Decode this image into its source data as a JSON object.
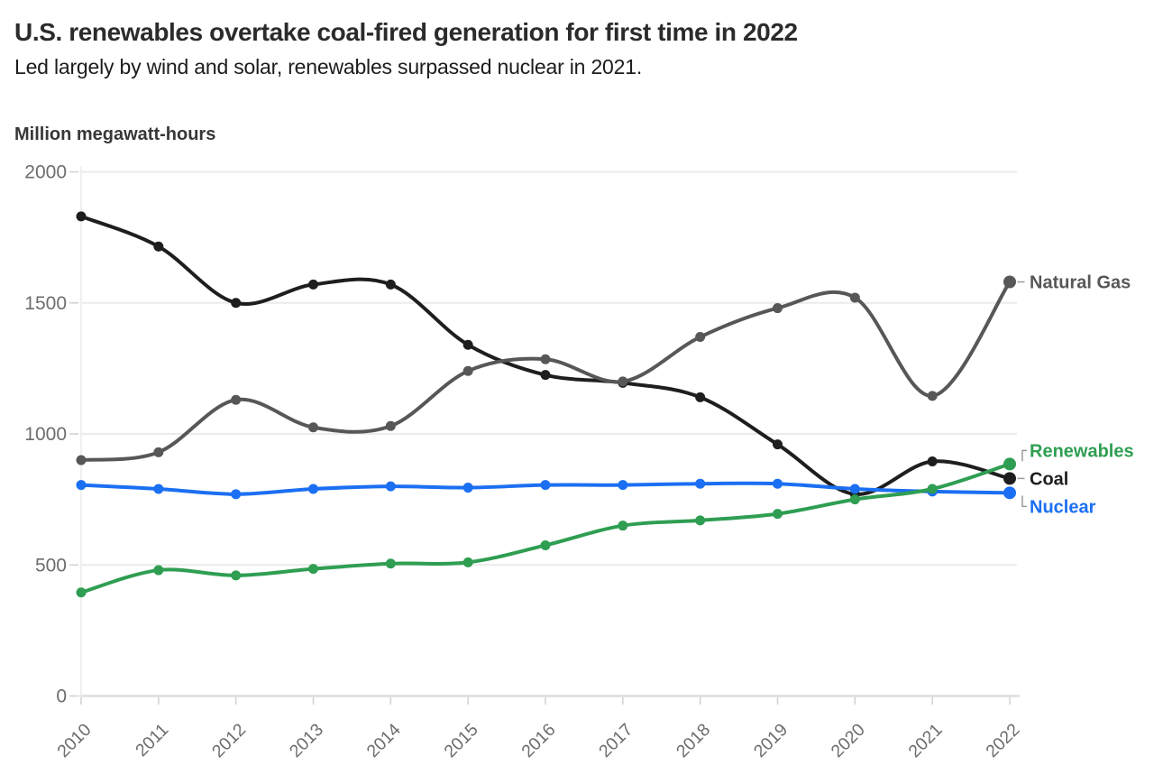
{
  "chart_data": {
    "type": "line",
    "title": "U.S. renewables overtake coal-fired generation for first time in 2022",
    "subtitle": "Led largely by wind and solar, renewables surpassed nuclear in 2021.",
    "ylabel": "Million megawatt-hours",
    "xlabel": "",
    "x": [
      2010,
      2011,
      2012,
      2013,
      2014,
      2015,
      2016,
      2017,
      2018,
      2019,
      2020,
      2021,
      2022
    ],
    "ylim": [
      0,
      2000
    ],
    "y_ticks": [
      0,
      500,
      1000,
      1500,
      2000
    ],
    "grid": "horizontal",
    "legend_position": "right-end-labels",
    "series": [
      {
        "name": "Coal",
        "color": "#1e1e1e",
        "connector": "dash",
        "values": [
          1830,
          1715,
          1500,
          1570,
          1570,
          1340,
          1225,
          1195,
          1140,
          960,
          770,
          895,
          830
        ]
      },
      {
        "name": "Natural Gas",
        "color": "#575757",
        "connector": "dash",
        "values": [
          900,
          930,
          1130,
          1025,
          1030,
          1240,
          1285,
          1200,
          1370,
          1480,
          1520,
          1145,
          1580
        ]
      },
      {
        "name": "Nuclear",
        "color": "#1b6ff2",
        "connector": "elbow-down",
        "values": [
          805,
          790,
          770,
          790,
          800,
          795,
          805,
          805,
          810,
          810,
          790,
          780,
          775
        ]
      },
      {
        "name": "Renewables",
        "color": "#2f9e52",
        "connector": "elbow-up",
        "values": [
          395,
          480,
          460,
          485,
          505,
          510,
          575,
          650,
          670,
          695,
          750,
          790,
          885
        ]
      }
    ]
  }
}
